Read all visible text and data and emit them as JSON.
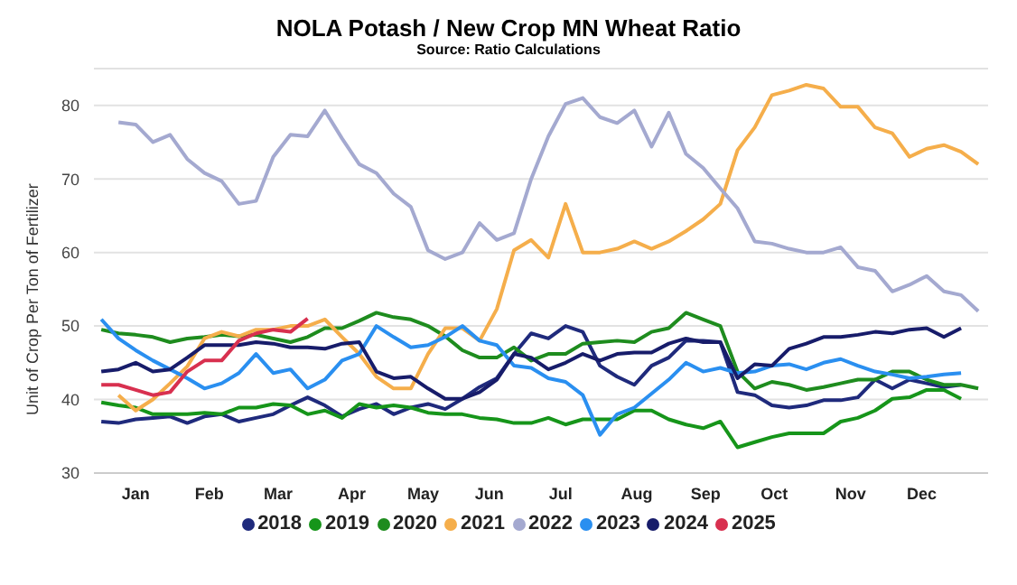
{
  "chart_data": {
    "type": "line",
    "title": "NOLA Potash / New Crop MN Wheat Ratio",
    "subtitle": "Source: Ratio Calculations",
    "ylabel": "Unit of Crop Per Ton of Fertilizer",
    "x": [
      "--01-04",
      "--01-11",
      "--01-18",
      "--01-25",
      "--02-01",
      "--02-08",
      "--02-15",
      "--02-22",
      "--03-01",
      "--03-08",
      "--03-15",
      "--03-22",
      "--03-29",
      "--04-05",
      "--04-12",
      "--04-19",
      "--04-26",
      "--05-03",
      "--05-10",
      "--05-17",
      "--05-24",
      "--05-31",
      "--06-07",
      "--06-14",
      "--06-21",
      "--06-28",
      "--07-05",
      "--07-12",
      "--07-19",
      "--07-26",
      "--08-02",
      "--08-09",
      "--08-16",
      "--08-23",
      "--08-30",
      "--09-06",
      "--09-13",
      "--09-20",
      "--09-27",
      "--10-04",
      "--10-11",
      "--10-18",
      "--10-25",
      "--11-01",
      "--11-08",
      "--11-15",
      "--11-22",
      "--11-29",
      "--12-06",
      "--12-13",
      "--12-20",
      "--12-27"
    ],
    "xlim": [
      "--01-01",
      "--12-31"
    ],
    "xticks": [
      {
        "value": "--01-18",
        "label": "Jan"
      },
      {
        "value": "--02-17",
        "label": "Feb"
      },
      {
        "value": "--03-17",
        "label": "Mar"
      },
      {
        "value": "--04-16",
        "label": "Apr"
      },
      {
        "value": "--05-15",
        "label": "May"
      },
      {
        "value": "--06-11",
        "label": "Jun"
      },
      {
        "value": "--07-10",
        "label": "Jul"
      },
      {
        "value": "--08-10",
        "label": "Aug"
      },
      {
        "value": "--09-07",
        "label": "Sep"
      },
      {
        "value": "--10-05",
        "label": "Oct"
      },
      {
        "value": "--11-05",
        "label": "Nov"
      },
      {
        "value": "--12-04",
        "label": "Dec"
      }
    ],
    "ylim": [
      30,
      85
    ],
    "yticks": [
      30,
      40,
      50,
      60,
      70,
      80
    ],
    "grid": "y",
    "legend": "bottom",
    "marker": "none",
    "line_style": "solid",
    "series": [
      {
        "name": "2018",
        "color": "#1f2a7c",
        "values": [
          37,
          36.8,
          37.3,
          37.5,
          37.7,
          36.8,
          37.7,
          38,
          37,
          37.5,
          38,
          39.2,
          40.3,
          39.2,
          37.7,
          38.7,
          39.4,
          38,
          38.9,
          39.4,
          38.7,
          40.1,
          41.7,
          42.9,
          46.2,
          49,
          48.3,
          50,
          49.2,
          44.6,
          43.1,
          42,
          44.6,
          45.7,
          48,
          48,
          47.8,
          41,
          40.6,
          39.2,
          38.9,
          39.2,
          39.9,
          39.9,
          40.3,
          42.7,
          41.5,
          42.7,
          42.2,
          41.7,
          42,
          null
        ]
      },
      {
        "name": "2019",
        "color": "#16951a",
        "values": [
          39.6,
          39.2,
          38.9,
          38,
          38,
          38,
          38.2,
          38,
          38.9,
          38.9,
          39.4,
          39.2,
          38,
          38.5,
          37.5,
          39.4,
          38.9,
          39.2,
          38.9,
          38.2,
          38,
          38,
          37.5,
          37.3,
          36.8,
          36.8,
          37.5,
          36.6,
          37.3,
          37.3,
          37.3,
          38.5,
          38.5,
          37.3,
          36.6,
          36.1,
          37,
          33.5,
          34.2,
          34.9,
          35.4,
          35.4,
          35.4,
          37,
          37.5,
          38.5,
          40.1,
          40.3,
          41.3,
          41.3,
          40.1,
          null
        ]
      },
      {
        "name": "2020",
        "color": "#1e8c1e",
        "values": [
          49.5,
          49,
          48.8,
          48.5,
          47.8,
          48.3,
          48.5,
          48.8,
          48.6,
          48.8,
          48.3,
          47.8,
          48.5,
          49.7,
          49.7,
          50.7,
          51.8,
          51.2,
          50.9,
          50,
          48.6,
          46.7,
          45.7,
          45.7,
          47.1,
          45.3,
          46.2,
          46.2,
          47.6,
          47.8,
          48,
          47.8,
          49.2,
          49.7,
          51.8,
          50.9,
          50,
          43.8,
          41.5,
          42.4,
          42,
          41.3,
          41.7,
          42.2,
          42.7,
          42.7,
          43.8,
          43.8,
          42.7,
          42,
          42,
          41.5
        ]
      },
      {
        "name": "2021",
        "color": "#f5ae4b",
        "values": [
          null,
          40.6,
          38.5,
          40,
          42.2,
          44.5,
          48.3,
          49.2,
          48.6,
          49.5,
          49.5,
          50,
          50,
          50.9,
          48.5,
          46.2,
          43.1,
          41.5,
          41.5,
          46.2,
          49.7,
          49.7,
          48,
          52.3,
          60.3,
          61.7,
          59.3,
          66.6,
          60,
          60,
          60.5,
          61.5,
          60.5,
          61.5,
          62.9,
          64.5,
          66.6,
          73.9,
          77,
          81.4,
          82,
          82.8,
          82.3,
          79.8,
          79.8,
          77,
          76.2,
          73,
          74.1,
          74.6,
          73.7,
          72
        ]
      },
      {
        "name": "2022",
        "color": "#a4a9d0",
        "values": [
          null,
          77.7,
          77.4,
          75,
          76,
          72.7,
          70.8,
          69.7,
          66.6,
          67,
          73,
          76,
          75.8,
          79.3,
          75.5,
          72,
          70.8,
          68,
          66.2,
          60.3,
          59.1,
          60,
          64,
          61.7,
          62.6,
          70,
          75.8,
          80.2,
          81,
          78.4,
          77.6,
          79.3,
          74.4,
          79,
          73.4,
          71.5,
          68.7,
          66,
          61.5,
          61.2,
          60.5,
          60,
          60,
          60.7,
          58,
          57.5,
          54.7,
          55.6,
          56.8,
          54.7,
          54.2,
          52
        ]
      },
      {
        "name": "2023",
        "color": "#2a8ff0",
        "values": [
          50.9,
          48.3,
          46.7,
          45.3,
          44.1,
          42.9,
          41.5,
          42.2,
          43.6,
          46.2,
          43.6,
          44.1,
          41.5,
          42.7,
          45.3,
          46.2,
          50,
          48.5,
          47.1,
          47.4,
          48.5,
          50,
          48,
          47.4,
          44.6,
          44.3,
          42.9,
          42.4,
          40.6,
          35.2,
          38,
          38.9,
          40.8,
          42.7,
          45,
          43.8,
          44.3,
          43.6,
          43.8,
          44.6,
          44.8,
          44.1,
          45,
          45.5,
          44.6,
          43.8,
          43.4,
          42.9,
          43.1,
          43.4,
          43.6,
          null
        ]
      },
      {
        "name": "2024",
        "color": "#171c6a",
        "values": [
          43.8,
          44.1,
          45,
          43.8,
          44.1,
          45.7,
          47.4,
          47.4,
          47.4,
          47.8,
          47.6,
          47.1,
          47.1,
          46.9,
          47.6,
          47.8,
          43.8,
          42.9,
          43.1,
          41.5,
          40.1,
          40.1,
          41,
          42.7,
          46.2,
          45.7,
          44.1,
          45,
          46.2,
          45.3,
          46.2,
          46.4,
          46.4,
          47.6,
          48.3,
          47.8,
          47.8,
          42.9,
          44.8,
          44.6,
          46.9,
          47.6,
          48.5,
          48.5,
          48.8,
          49.2,
          49,
          49.5,
          49.7,
          48.5,
          49.7,
          null
        ]
      },
      {
        "name": "2025",
        "color": "#d8304f",
        "values": [
          42,
          42,
          41.3,
          40.6,
          41,
          43.8,
          45.3,
          45.3,
          48,
          49,
          49.5,
          49.2,
          51,
          null,
          null,
          null,
          null,
          null,
          null,
          null,
          null,
          null,
          null,
          null,
          null,
          null,
          null,
          null,
          null,
          null,
          null,
          null,
          null,
          null,
          null,
          null,
          null,
          null,
          null,
          null,
          null,
          null,
          null,
          null,
          null,
          null,
          null,
          null,
          null,
          null,
          null,
          null
        ]
      }
    ]
  }
}
